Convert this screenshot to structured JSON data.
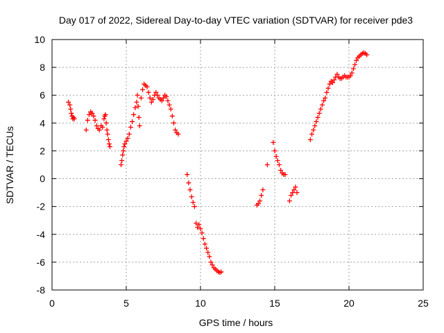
{
  "chart_data": {
    "type": "scatter",
    "title": "Day 017 of 2022, Sidereal Day-to-day VTEC variation (SDTVAR) for receiver pde3",
    "xlabel": "GPS time / hours",
    "ylabel": "SDTVAR / TECUs",
    "xlim": [
      0,
      25
    ],
    "ylim": [
      -8,
      10
    ],
    "x_ticks": [
      "0",
      "5",
      "10",
      "15",
      "20",
      "25"
    ],
    "y_ticks": [
      "-8",
      "-6",
      "-4",
      "-2",
      "0",
      "2",
      "4",
      "6",
      "8",
      "10"
    ],
    "grid": true,
    "marker": "+",
    "colors": {
      "series": "#ff0000",
      "axis": "#000000",
      "grid": "#a0a0a0"
    },
    "series": [
      {
        "x": [
          1.1,
          1.2,
          1.25,
          1.3,
          1.35,
          1.4,
          1.45,
          1.5,
          2.3,
          2.4,
          2.5,
          2.6,
          2.7,
          2.8,
          2.9,
          3.0,
          3.1,
          3.2,
          3.3,
          3.4,
          3.5,
          3.55,
          3.6,
          3.65,
          3.7,
          3.75,
          3.8,
          3.85,
          3.9,
          4.65,
          4.7,
          4.75,
          4.8,
          4.85,
          4.9,
          5.0,
          5.1,
          5.2,
          5.3,
          5.4,
          5.5,
          5.6,
          5.7,
          5.75,
          5.8,
          5.85,
          5.9,
          6.0,
          6.1,
          6.2,
          6.3,
          6.4,
          6.5,
          6.6,
          6.7,
          6.8,
          6.9,
          7.0,
          7.1,
          7.2,
          7.3,
          7.4,
          7.5,
          7.6,
          7.7,
          7.8,
          7.9,
          8.0,
          8.1,
          8.2,
          8.3,
          8.4,
          8.5,
          9.1,
          9.2,
          9.3,
          9.4,
          9.5,
          9.6,
          9.7,
          9.8,
          9.9,
          10.0,
          10.1,
          10.2,
          10.3,
          10.4,
          10.5,
          10.6,
          10.7,
          10.8,
          10.9,
          11.0,
          11.1,
          11.2,
          11.3,
          11.4,
          13.8,
          13.9,
          14.0,
          14.1,
          14.2,
          14.5,
          14.9,
          15.0,
          15.1,
          15.2,
          15.3,
          15.4,
          15.5,
          15.6,
          15.7,
          16.0,
          16.1,
          16.2,
          16.3,
          16.4,
          16.5,
          17.4,
          17.5,
          17.6,
          17.7,
          17.8,
          17.9,
          18.0,
          18.1,
          18.2,
          18.3,
          18.4,
          18.5,
          18.6,
          18.7,
          18.8,
          18.9,
          19.0,
          19.1,
          19.2,
          19.3,
          19.4,
          19.5,
          19.6,
          19.7,
          19.8,
          19.9,
          20.0,
          20.1,
          20.2,
          20.3,
          20.4,
          20.5,
          20.6,
          20.7,
          20.8,
          20.9,
          21.0,
          21.1,
          21.2
        ],
        "y": [
          5.5,
          5.3,
          5.0,
          4.7,
          4.5,
          4.3,
          4.4,
          4.3,
          3.5,
          4.2,
          4.6,
          4.8,
          4.7,
          4.5,
          4.2,
          3.8,
          3.6,
          3.5,
          3.8,
          3.7,
          4.3,
          4.5,
          4.6,
          4.0,
          3.5,
          3.2,
          2.8,
          2.5,
          2.3,
          1.0,
          1.3,
          1.7,
          2.0,
          2.3,
          2.5,
          2.7,
          2.9,
          3.2,
          3.7,
          4.1,
          4.6,
          5.1,
          5.5,
          6.0,
          5.2,
          4.4,
          3.8,
          5.8,
          6.4,
          6.8,
          6.7,
          6.6,
          6.2,
          5.8,
          5.5,
          5.7,
          6.0,
          6.2,
          6.0,
          5.8,
          5.7,
          5.6,
          5.8,
          6.0,
          5.9,
          5.6,
          5.3,
          5.0,
          4.5,
          4.0,
          3.5,
          3.3,
          3.2,
          0.3,
          -0.3,
          -0.8,
          -1.3,
          -1.7,
          -2.0,
          -3.2,
          -3.5,
          -3.3,
          -3.6,
          -3.9,
          -4.3,
          -4.7,
          -5.0,
          -5.3,
          -5.6,
          -6.0,
          -6.2,
          -6.4,
          -6.5,
          -6.6,
          -6.7,
          -6.75,
          -6.7,
          -1.9,
          -1.8,
          -1.6,
          -1.2,
          -0.8,
          1.0,
          2.6,
          2.0,
          1.6,
          1.3,
          1.0,
          0.6,
          0.4,
          0.3,
          0.3,
          -1.6,
          -1.2,
          -1.0,
          -0.8,
          -0.6,
          -1.0,
          2.8,
          3.2,
          3.5,
          3.8,
          4.1,
          4.4,
          4.7,
          5.0,
          5.3,
          5.6,
          5.8,
          6.2,
          6.5,
          6.8,
          7.0,
          6.9,
          7.1,
          7.3,
          7.5,
          7.3,
          7.2,
          7.2,
          7.3,
          7.4,
          7.3,
          7.3,
          7.3,
          7.4,
          7.6,
          7.9,
          8.2,
          8.5,
          8.7,
          8.8,
          8.9,
          9.0,
          9.05,
          9.0,
          8.9
        ]
      }
    ]
  }
}
